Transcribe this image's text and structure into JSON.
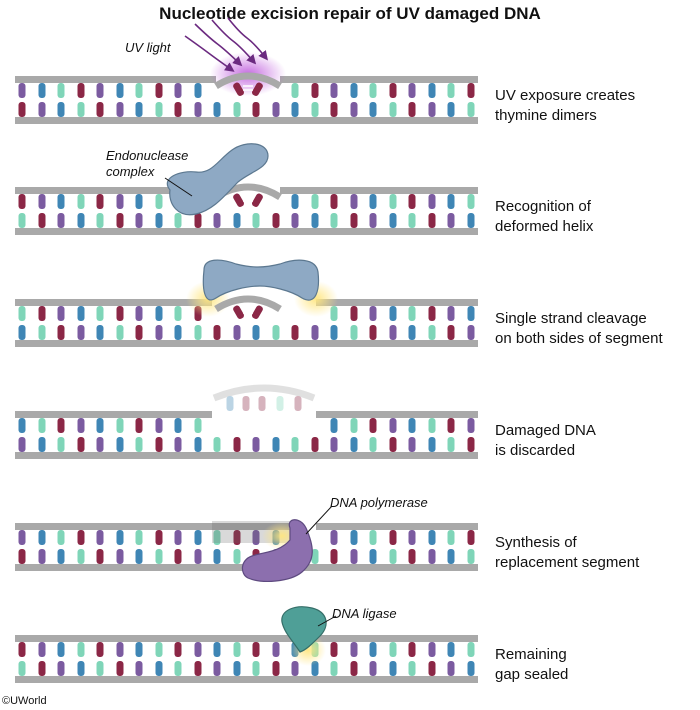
{
  "title": "Nucleotide excision repair of UV damaged DNA",
  "copyright": "©UWorld",
  "labels": {
    "uv_light": "UV light",
    "endonuclease_l1": "Endonuclease",
    "endonuclease_l2": "complex",
    "dna_polymerase": "DNA polymerase",
    "dna_ligase": "DNA ligase"
  },
  "steps": [
    {
      "l1": "UV exposure creates",
      "l2": "thymine dimers"
    },
    {
      "l1": "Recognition of",
      "l2": "deformed helix"
    },
    {
      "l1": "Single strand cleavage",
      "l2": "on both sides of segment"
    },
    {
      "l1": "Damaged DNA",
      "l2": "is discarded"
    },
    {
      "l1": "Synthesis of",
      "l2": "replacement segment"
    },
    {
      "l1": "Remaining",
      "l2": "gap sealed"
    }
  ],
  "colors": {
    "backbone": "#a9a9a9",
    "base_maroon": "#8b2746",
    "base_purple": "#7b5ba0",
    "base_blue": "#3f86b5",
    "base_teal": "#7fd5b8",
    "endonuclease": "#8ea9c4",
    "polymerase": "#8c6fae",
    "ligase": "#4f9f97",
    "uv": "#9b2fb5"
  }
}
